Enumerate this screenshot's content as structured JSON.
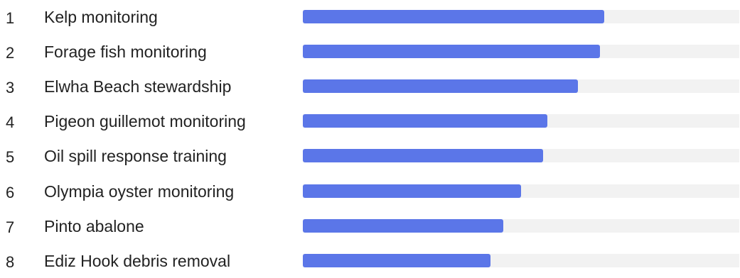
{
  "chart_data": {
    "type": "bar",
    "orientation": "horizontal",
    "ranks": [
      "1",
      "2",
      "3",
      "4",
      "5",
      "6",
      "7",
      "8"
    ],
    "categories": [
      "Kelp monitoring",
      "Forage fish monitoring",
      "Elwha Beach stewardship",
      "Pigeon guillemot monitoring",
      "Oil spill response training",
      "Olympia oyster monitoring",
      "Pinto abalone",
      "Ediz Hook debris removal"
    ],
    "values": [
      0.69,
      0.68,
      0.63,
      0.56,
      0.55,
      0.5,
      0.46,
      0.43
    ],
    "xlim": [
      0,
      1
    ],
    "grid": false,
    "legend": "none",
    "colors": {
      "bar": "#5b76e8",
      "track": "#f2f2f2"
    }
  }
}
